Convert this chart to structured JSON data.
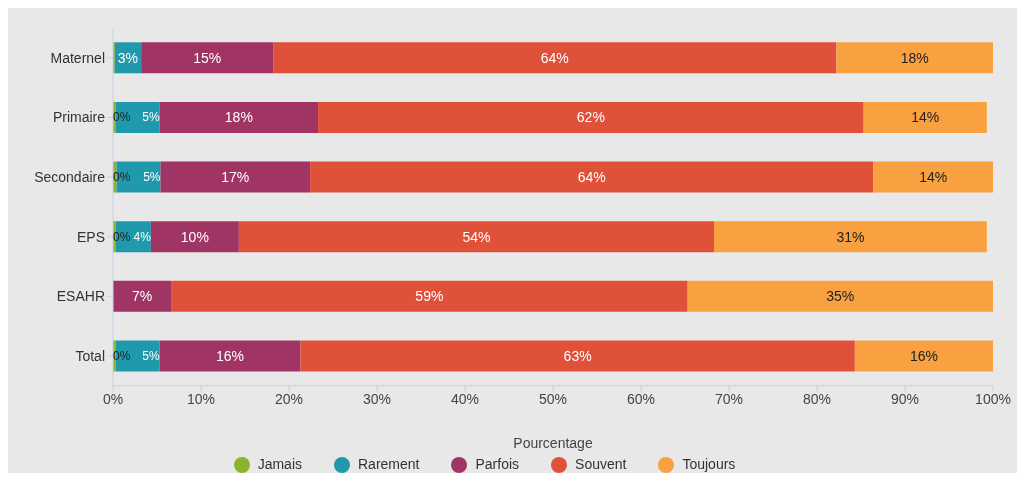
{
  "chart_data": {
    "type": "bar",
    "orientation": "horizontal",
    "stacked": true,
    "xlabel": "Pourcentage",
    "categories": [
      "Maternel",
      "Primaire",
      "Secondaire",
      "EPS",
      "ESAHR",
      "Total"
    ],
    "series": [
      {
        "name": "Jamais",
        "color": "#8db32a",
        "values": [
          0.2,
          0.3,
          0.4,
          0.3,
          null,
          0.3
        ],
        "value_labels": [
          null,
          "0%",
          "0%",
          "0%",
          null,
          "0%"
        ]
      },
      {
        "name": "Rarement",
        "color": "#2199ad",
        "values": [
          3,
          5,
          5,
          4,
          null,
          5
        ],
        "value_labels": [
          "3%",
          "5%",
          "5%",
          "4%",
          null,
          "5%"
        ]
      },
      {
        "name": "Parfois",
        "color": "#a03565",
        "values": [
          15,
          18,
          17,
          10,
          6.6,
          16
        ],
        "value_labels": [
          "15%",
          "18%",
          "17%",
          "10%",
          "7%",
          "16%"
        ]
      },
      {
        "name": "Souvent",
        "color": "#e0513a",
        "values": [
          64,
          62,
          64,
          54,
          58.7,
          63
        ],
        "value_labels": [
          "64%",
          "62%",
          "64%",
          "54%",
          "59%",
          "63%"
        ]
      },
      {
        "name": "Toujours",
        "color": "#f9a040",
        "values": [
          17.8,
          14,
          13.6,
          31,
          34.7,
          15.7
        ],
        "value_labels": [
          "18%",
          "14%",
          "14%",
          "31%",
          "35%",
          "16%"
        ]
      }
    ],
    "xlim": [
      0,
      100
    ],
    "xticks": [
      {
        "value": 0,
        "label": "0%"
      },
      {
        "value": 10,
        "label": "10%"
      },
      {
        "value": 20,
        "label": "20%"
      },
      {
        "value": 30,
        "label": "30%"
      },
      {
        "value": 40,
        "label": "40%"
      },
      {
        "value": 50,
        "label": "50%"
      },
      {
        "value": 60,
        "label": "60%"
      },
      {
        "value": 70,
        "label": "70%"
      },
      {
        "value": 80,
        "label": "80%"
      },
      {
        "value": 90,
        "label": "90%"
      },
      {
        "value": 100,
        "label": "100%"
      }
    ],
    "legend": "bottom",
    "grid": false
  }
}
